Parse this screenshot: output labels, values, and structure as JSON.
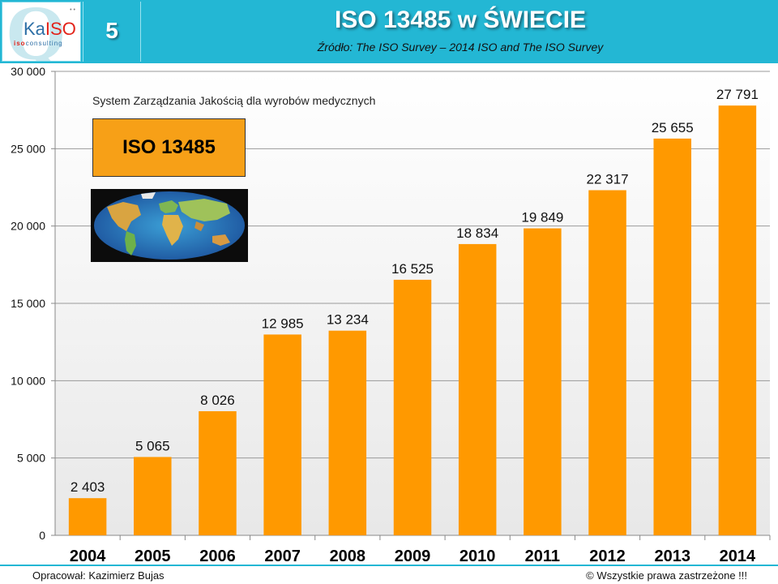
{
  "slide": {
    "number": "5",
    "title": "ISO 13485 w ŚWIECIE",
    "source": "Źródło: The ISO Survey – 2014   ISO and The ISO Survey"
  },
  "logo": {
    "ka": "Ka",
    "iso": "ISO",
    "sub_prefix": "iso",
    "sub_suffix": "consulting"
  },
  "chart_label": "System Zarządzania Jakością dla wyrobów medycznych",
  "iso_box_label": "ISO 13485",
  "footer": {
    "left": "Opracował: Kazimierz Bujas",
    "right": "©  Wszystkie prawa zastrzeżone !!!"
  },
  "colors": {
    "header": "#23b7d4",
    "bar": "#ff9900",
    "iso_box": "#f7a017"
  },
  "chart_data": {
    "type": "bar",
    "categories": [
      "2004",
      "2005",
      "2006",
      "2007",
      "2008",
      "2009",
      "2010",
      "2011",
      "2012",
      "2013",
      "2014"
    ],
    "values": [
      2403,
      5065,
      8026,
      12985,
      13234,
      16525,
      18834,
      19849,
      22317,
      25655,
      27791
    ],
    "value_labels": [
      "2 403",
      "5 065",
      "8 026",
      "12 985",
      "13 234",
      "16 525",
      "18 834",
      "19 849",
      "22 317",
      "25 655",
      "27 791"
    ],
    "title": "",
    "xlabel": "",
    "ylabel": "",
    "ylim": [
      0,
      30000
    ],
    "yticks": [
      0,
      5000,
      10000,
      15000,
      20000,
      25000,
      30000
    ],
    "ytick_labels": [
      "0",
      "5 000",
      "10 000",
      "15 000",
      "20 000",
      "25 000",
      "30 000"
    ],
    "grid": true,
    "legend": "none"
  }
}
